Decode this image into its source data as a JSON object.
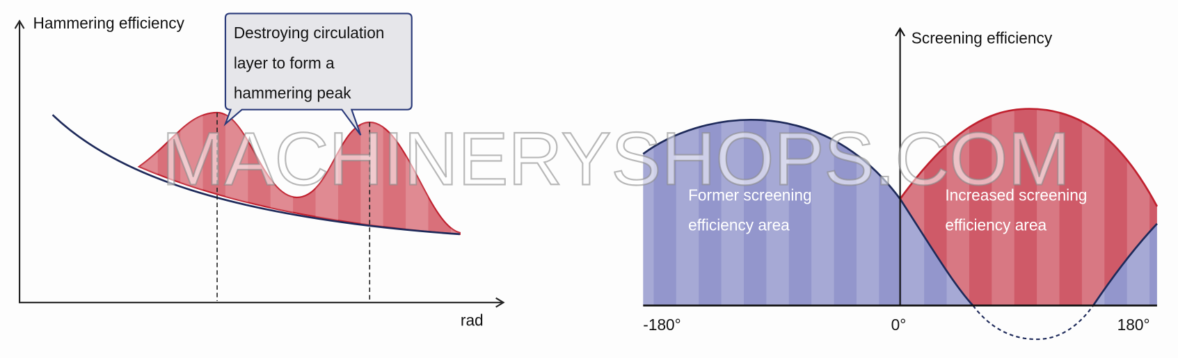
{
  "left_diagram": {
    "y_axis_label": "Hammering efficiency",
    "x_axis_label": "rad",
    "callout": {
      "lines": [
        "Destroying circulation",
        "layer to form a",
        "hammering peak"
      ]
    }
  },
  "right_diagram": {
    "y_axis_label": "Screening efficiency",
    "tick_labels": [
      "-180°",
      "0°",
      "180°"
    ],
    "areas": [
      {
        "lines": [
          "Former screening",
          "efficiency area"
        ]
      },
      {
        "lines": [
          "Increased screening",
          "efficiency area"
        ]
      }
    ]
  },
  "watermark": "MACHINERYSHOPS.COM"
}
